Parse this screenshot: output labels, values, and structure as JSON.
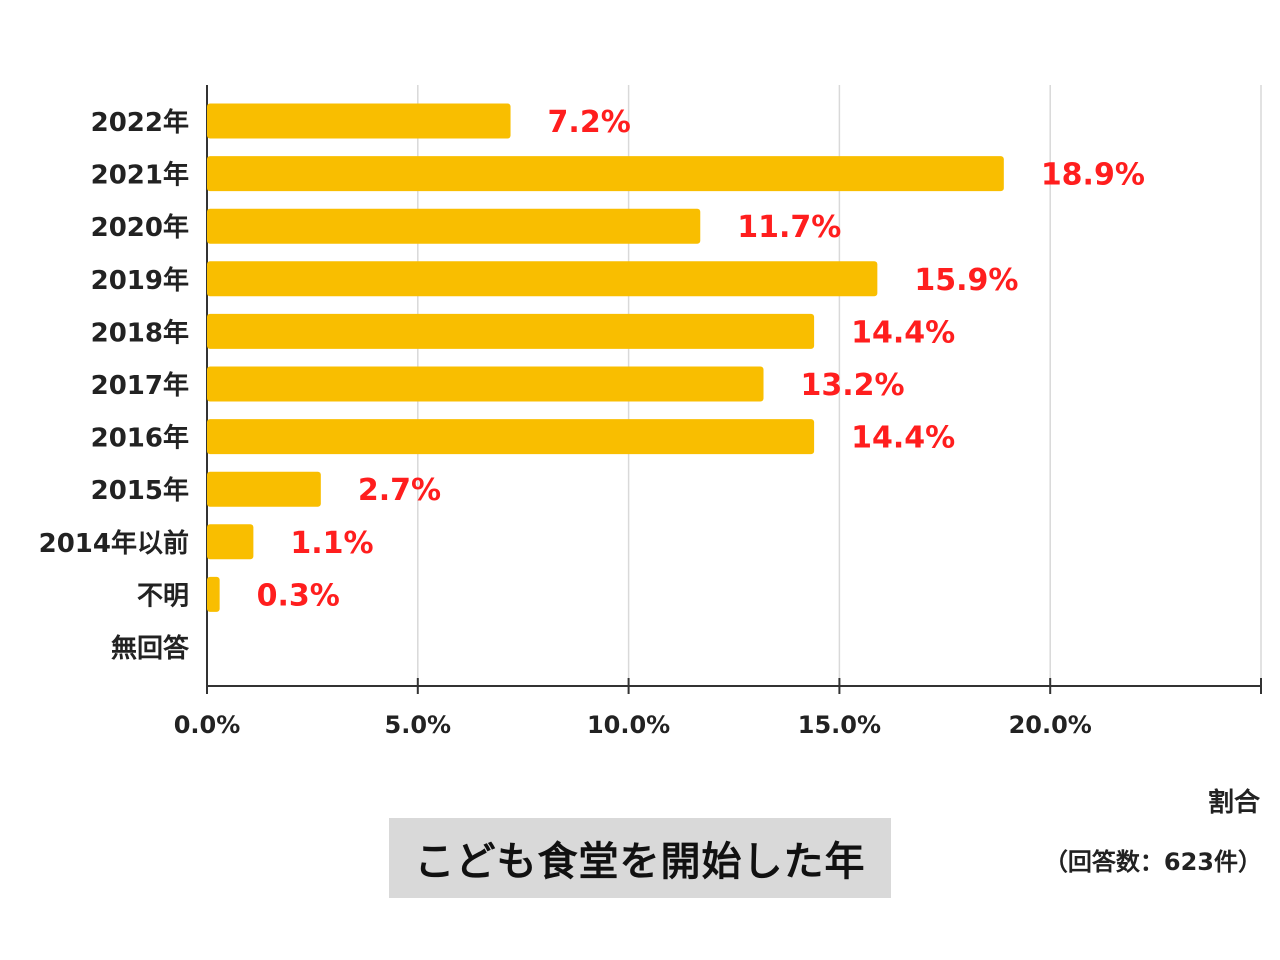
{
  "chart_data": {
    "type": "bar",
    "orientation": "horizontal",
    "title": "こども食堂を開始した年",
    "xlabel": "割合",
    "ylabel": "",
    "note": "（回答数：623件）",
    "categories": [
      "2022年",
      "2021年",
      "2020年",
      "2019年",
      "2018年",
      "2017年",
      "2016年",
      "2015年",
      "2014年以前",
      "不明",
      "無回答"
    ],
    "values": [
      7.2,
      18.9,
      11.7,
      15.9,
      14.4,
      13.2,
      14.4,
      2.7,
      1.1,
      0.3,
      null
    ],
    "value_labels": [
      "7.2%",
      "18.9%",
      "11.7%",
      "15.9%",
      "14.4%",
      "13.2%",
      "14.4%",
      "2.7%",
      "1.1%",
      "0.3%",
      ""
    ],
    "xlim": [
      0,
      25
    ],
    "xticks": [
      0,
      5,
      10,
      15,
      20
    ],
    "xtick_labels": [
      "0.0%",
      "5.0%",
      "10.0%",
      "15.0%",
      "20.0%"
    ],
    "grid": true,
    "legend": "none",
    "colors": {
      "bar": "#F9BE00",
      "value_label": "#FF1E1E",
      "grid": "#d9d9d9",
      "axis": "#333333",
      "text": "#222222",
      "title_bg": "#D9D9D9"
    }
  }
}
